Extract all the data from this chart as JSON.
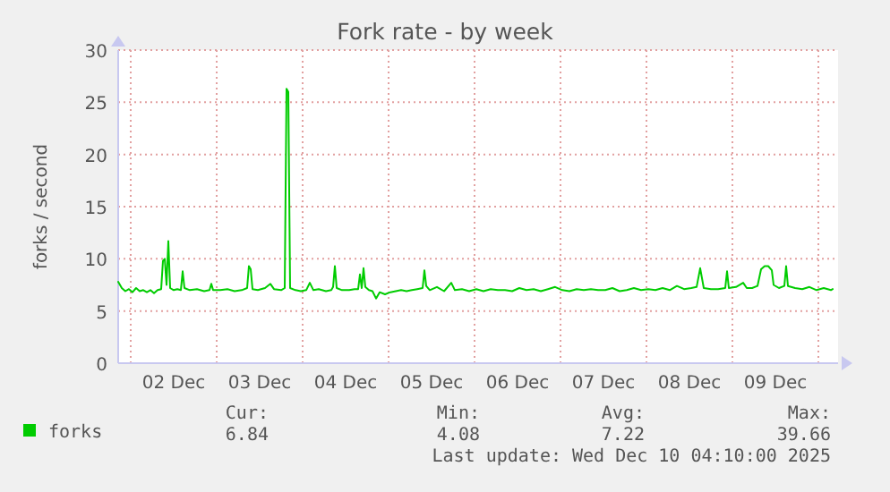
{
  "chart_data": {
    "type": "line",
    "title": "Fork rate - by week",
    "ylabel": "forks / second",
    "xlim": [
      "2025-12-01T20:30",
      "2025-12-10T05:30"
    ],
    "xticks": [
      {
        "value": "2025-12-02T00:00",
        "label": null
      },
      {
        "value": "2025-12-02T12:00",
        "label": "02 Dec"
      },
      {
        "value": "2025-12-03T00:00",
        "label": null
      },
      {
        "value": "2025-12-03T12:00",
        "label": "03 Dec"
      },
      {
        "value": "2025-12-04T00:00",
        "label": null
      },
      {
        "value": "2025-12-04T12:00",
        "label": "04 Dec"
      },
      {
        "value": "2025-12-05T00:00",
        "label": null
      },
      {
        "value": "2025-12-05T12:00",
        "label": "05 Dec"
      },
      {
        "value": "2025-12-06T00:00",
        "label": null
      },
      {
        "value": "2025-12-06T12:00",
        "label": "06 Dec"
      },
      {
        "value": "2025-12-07T00:00",
        "label": null
      },
      {
        "value": "2025-12-07T12:00",
        "label": "07 Dec"
      },
      {
        "value": "2025-12-08T00:00",
        "label": null
      },
      {
        "value": "2025-12-08T12:00",
        "label": "08 Dec"
      },
      {
        "value": "2025-12-09T00:00",
        "label": null
      },
      {
        "value": "2025-12-09T12:00",
        "label": "09 Dec"
      },
      {
        "value": "2025-12-10T00:00",
        "label": null
      }
    ],
    "ylim": [
      0,
      30
    ],
    "yticks": [
      0,
      5,
      10,
      15,
      20,
      25,
      30
    ],
    "grid": true,
    "legend": "bottom left",
    "marker": "none",
    "line_style": "solid",
    "x": [
      "2025-12-01T20:30",
      "2025-12-01T21:30",
      "2025-12-01T22:30",
      "2025-12-01T23:30",
      "2025-12-02T00:30",
      "2025-12-02T01:30",
      "2025-12-02T02:30",
      "2025-12-02T03:30",
      "2025-12-02T04:30",
      "2025-12-02T05:30",
      "2025-12-02T06:30",
      "2025-12-02T07:30",
      "2025-12-02T08:30",
      "2025-12-02T09:00",
      "2025-12-02T09:30",
      "2025-12-02T10:00",
      "2025-12-02T10:30",
      "2025-12-02T11:00",
      "2025-12-02T12:00",
      "2025-12-02T13:00",
      "2025-12-02T14:00",
      "2025-12-02T14:30",
      "2025-12-02T15:00",
      "2025-12-02T16:30",
      "2025-12-02T18:30",
      "2025-12-02T20:30",
      "2025-12-02T22:00",
      "2025-12-02T22:30",
      "2025-12-02T23:00",
      "2025-12-03T01:00",
      "2025-12-03T03:00",
      "2025-12-03T05:00",
      "2025-12-03T07:00",
      "2025-12-03T08:30",
      "2025-12-03T09:00",
      "2025-12-03T09:30",
      "2025-12-03T10:00",
      "2025-12-03T11:30",
      "2025-12-03T13:30",
      "2025-12-03T15:00",
      "2025-12-03T16:00",
      "2025-12-03T18:00",
      "2025-12-03T19:00",
      "2025-12-03T19:30",
      "2025-12-03T20:00",
      "2025-12-03T20:30",
      "2025-12-03T22:00",
      "2025-12-03T23:30",
      "2025-12-04T01:00",
      "2025-12-04T02:00",
      "2025-12-04T03:00",
      "2025-12-04T04:30",
      "2025-12-04T06:30",
      "2025-12-04T08:00",
      "2025-12-04T08:30",
      "2025-12-04T09:00",
      "2025-12-04T09:30",
      "2025-12-04T11:00",
      "2025-12-04T13:00",
      "2025-12-04T14:30",
      "2025-12-04T15:30",
      "2025-12-04T16:00",
      "2025-12-04T16:30",
      "2025-12-04T17:00",
      "2025-12-04T17:30",
      "2025-12-04T18:30",
      "2025-12-04T19:30",
      "2025-12-04T20:30",
      "2025-12-04T21:30",
      "2025-12-04T23:00",
      "2025-12-05T00:30",
      "2025-12-05T02:00",
      "2025-12-05T03:30",
      "2025-12-05T05:00",
      "2025-12-05T06:30",
      "2025-12-05T08:00",
      "2025-12-05T09:30",
      "2025-12-05T10:00",
      "2025-12-05T10:30",
      "2025-12-05T11:30",
      "2025-12-05T13:30",
      "2025-12-05T15:30",
      "2025-12-05T17:30",
      "2025-12-05T18:30",
      "2025-12-05T20:30",
      "2025-12-05T22:30",
      "2025-12-06T00:30",
      "2025-12-06T02:30",
      "2025-12-06T04:30",
      "2025-12-06T06:30",
      "2025-12-06T08:30",
      "2025-12-06T10:30",
      "2025-12-06T12:30",
      "2025-12-06T14:30",
      "2025-12-06T16:30",
      "2025-12-06T18:30",
      "2025-12-06T20:30",
      "2025-12-06T22:30",
      "2025-12-07T00:30",
      "2025-12-07T02:30",
      "2025-12-07T04:30",
      "2025-12-07T06:30",
      "2025-12-07T08:30",
      "2025-12-07T10:30",
      "2025-12-07T12:30",
      "2025-12-07T14:30",
      "2025-12-07T16:30",
      "2025-12-07T18:30",
      "2025-12-07T20:30",
      "2025-12-07T22:30",
      "2025-12-08T00:30",
      "2025-12-08T02:30",
      "2025-12-08T04:30",
      "2025-12-08T06:30",
      "2025-12-08T08:30",
      "2025-12-08T10:30",
      "2025-12-08T12:30",
      "2025-12-08T14:00",
      "2025-12-08T15:00",
      "2025-12-08T16:00",
      "2025-12-08T18:00",
      "2025-12-08T20:00",
      "2025-12-08T22:00",
      "2025-12-08T22:30",
      "2025-12-08T23:00",
      "2025-12-09T01:00",
      "2025-12-09T03:00",
      "2025-12-09T04:00",
      "2025-12-09T05:30",
      "2025-12-09T07:00",
      "2025-12-09T08:00",
      "2025-12-09T09:00",
      "2025-12-09T10:00",
      "2025-12-09T11:00",
      "2025-12-09T11:30",
      "2025-12-09T13:00",
      "2025-12-09T14:30",
      "2025-12-09T15:00",
      "2025-12-09T15:30",
      "2025-12-09T17:30",
      "2025-12-09T19:30",
      "2025-12-09T21:30",
      "2025-12-09T23:30",
      "2025-12-10T01:30",
      "2025-12-10T03:30",
      "2025-12-10T04:00"
    ],
    "series": [
      {
        "name": "forks",
        "color": "#00cc00",
        "values": [
          7.8,
          7.2,
          6.9,
          7.1,
          6.8,
          7.2,
          6.9,
          7.0,
          6.8,
          7.0,
          6.7,
          7.0,
          7.1,
          9.8,
          10.0,
          7.5,
          11.7,
          7.2,
          7.0,
          7.1,
          7.0,
          8.8,
          7.2,
          7.0,
          7.1,
          6.9,
          7.0,
          7.6,
          7.0,
          7.0,
          7.1,
          6.9,
          7.0,
          7.2,
          9.3,
          9.0,
          7.1,
          7.0,
          7.2,
          7.6,
          7.1,
          7.0,
          7.2,
          26.3,
          26.0,
          7.2,
          7.0,
          6.9,
          7.0,
          7.7,
          7.0,
          7.1,
          6.9,
          7.0,
          7.3,
          9.3,
          7.2,
          7.0,
          7.0,
          7.1,
          7.1,
          8.5,
          7.2,
          9.1,
          7.3,
          7.0,
          6.9,
          6.2,
          6.8,
          6.6,
          6.8,
          6.9,
          7.0,
          6.9,
          7.0,
          7.1,
          7.2,
          8.9,
          7.4,
          7.0,
          7.3,
          6.9,
          7.7,
          7.0,
          7.1,
          6.9,
          7.1,
          6.9,
          7.1,
          7.0,
          7.0,
          6.9,
          7.2,
          7.0,
          7.1,
          6.9,
          7.1,
          7.3,
          7.0,
          6.9,
          7.1,
          7.0,
          7.1,
          7.0,
          7.0,
          7.2,
          6.9,
          7.0,
          7.2,
          7.0,
          7.1,
          7.0,
          7.2,
          7.0,
          7.4,
          7.1,
          7.2,
          7.3,
          9.1,
          7.2,
          7.1,
          7.1,
          7.2,
          8.8,
          7.2,
          7.3,
          7.7,
          7.2,
          7.2,
          7.4,
          9.0,
          9.3,
          9.3,
          8.9,
          7.5,
          7.2,
          7.4,
          9.3,
          7.4,
          7.2,
          7.1,
          7.3,
          7.0,
          7.2,
          7.0,
          7.1
        ]
      }
    ],
    "annotations": [
      "Cur:",
      "6.84",
      "Min:",
      "4.08",
      "Avg:",
      "7.22",
      "Max:",
      "39.66",
      "Last update: Wed Dec 10 04:10:00 2025"
    ]
  }
}
